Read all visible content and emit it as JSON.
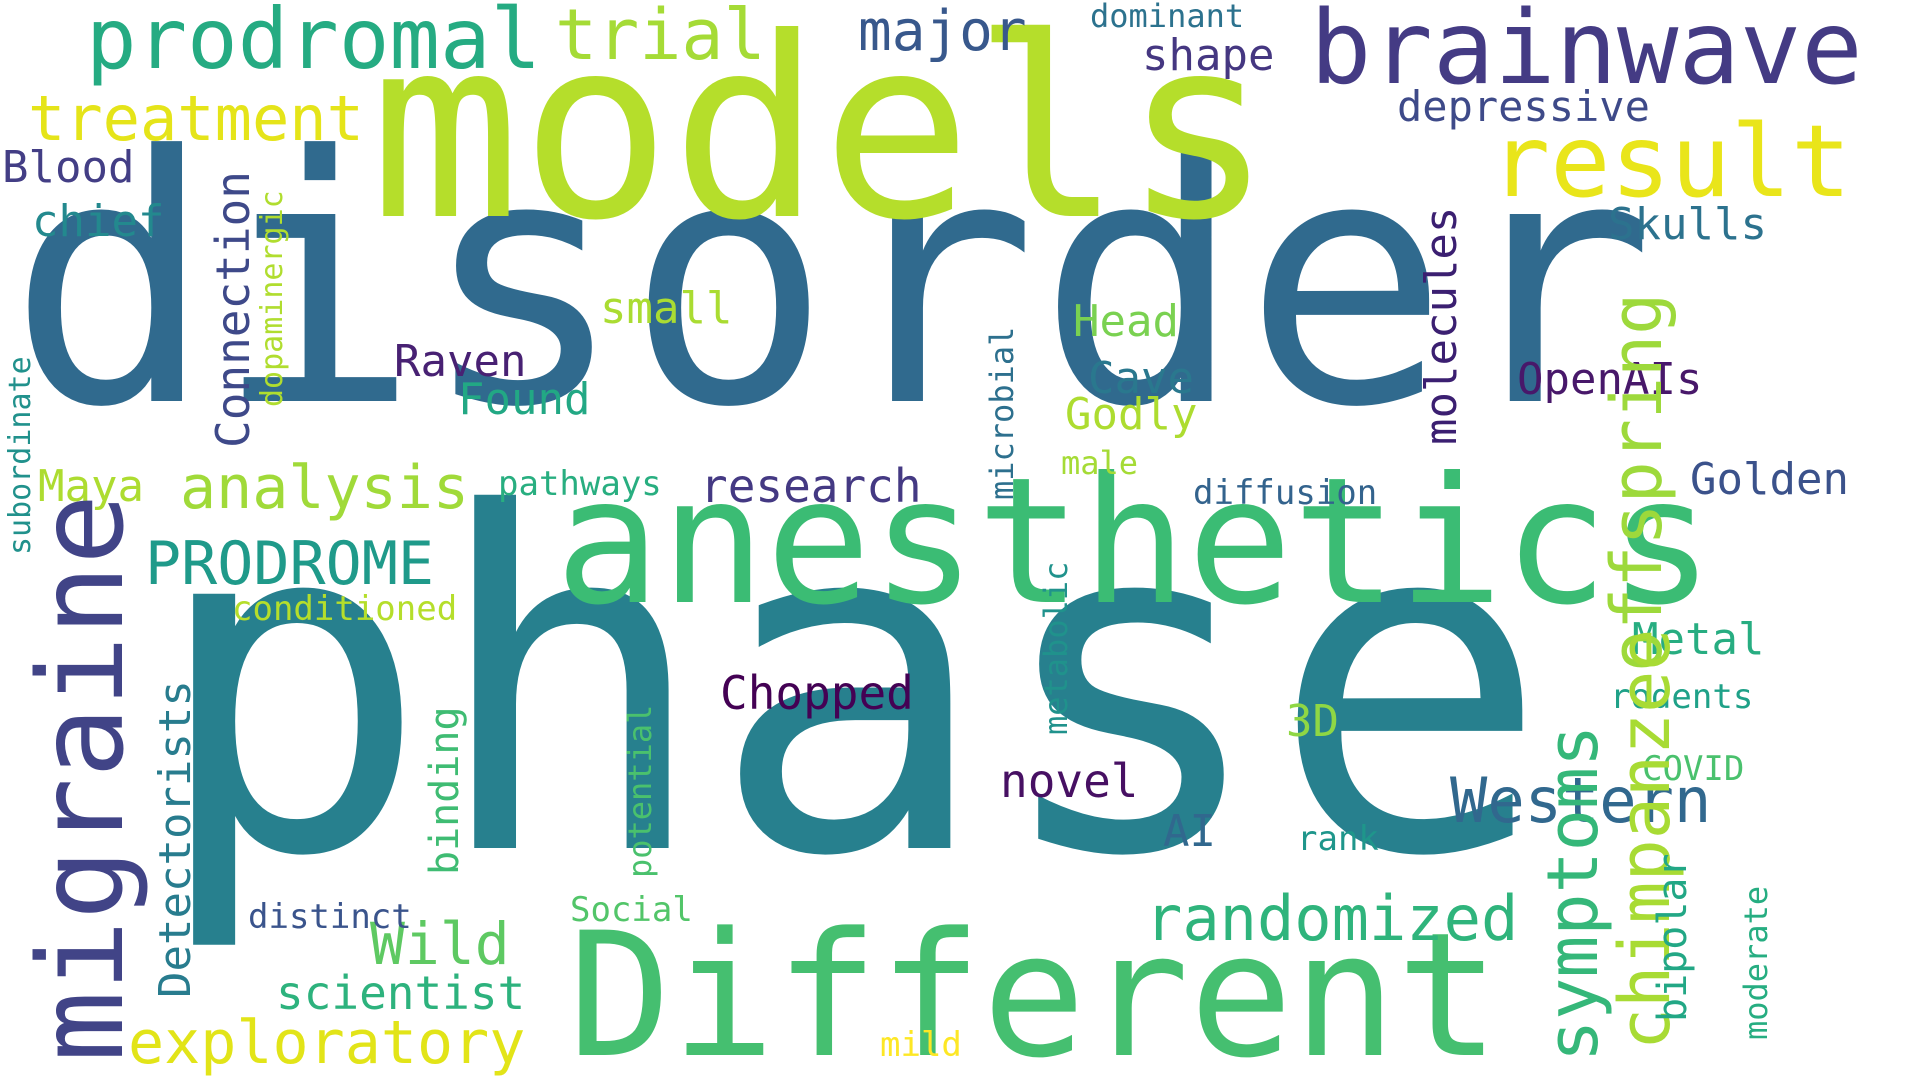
{
  "words": [
    {
      "id": "disorder",
      "text": "disorder",
      "color": "#306a8e"
    },
    {
      "id": "phase",
      "text": "phase",
      "color": "#27808e"
    },
    {
      "id": "models",
      "text": "models",
      "color": "#b5de2b"
    },
    {
      "id": "anesthetics",
      "text": "anesthetics",
      "color": "#3bbc74"
    },
    {
      "id": "different",
      "text": "Different",
      "color": "#45bf70"
    },
    {
      "id": "brainwave",
      "text": "brainwave",
      "color": "#443b84"
    },
    {
      "id": "migraine",
      "text": "migraine",
      "color": "#414487"
    },
    {
      "id": "prodromal",
      "text": "prodromal",
      "color": "#25ab82"
    },
    {
      "id": "result",
      "text": "result",
      "color": "#e9e51a"
    },
    {
      "id": "offspring",
      "text": "offspring",
      "color": "#9dd93b"
    },
    {
      "id": "symptoms",
      "text": "symptoms",
      "color": "#35b779"
    },
    {
      "id": "chimpanzee",
      "text": "chimpanzee",
      "color": "#a8db34"
    },
    {
      "id": "randomized",
      "text": "randomized",
      "color": "#2fb47c"
    },
    {
      "id": "exploratory",
      "text": "exploratory",
      "color": "#e2e418"
    },
    {
      "id": "treatment",
      "text": "treatment",
      "color": "#e5e419"
    },
    {
      "id": "trial",
      "text": "trial",
      "color": "#a5db36"
    },
    {
      "id": "major",
      "text": "major",
      "color": "#38588c"
    },
    {
      "id": "analysis",
      "text": "analysis",
      "color": "#a0da39"
    },
    {
      "id": "prodrome",
      "text": "PRODROME",
      "color": "#1f9a8a"
    },
    {
      "id": "western",
      "text": "Western",
      "color": "#31688e"
    },
    {
      "id": "wild",
      "text": "Wild",
      "color": "#5ec962"
    },
    {
      "id": "connection",
      "text": "Connection",
      "color": "#3e4989"
    },
    {
      "id": "detectorists",
      "text": "Detectorists",
      "color": "#287c8e"
    },
    {
      "id": "molecules",
      "text": "molecules",
      "color": "#3b1f71"
    },
    {
      "id": "research",
      "text": "research",
      "color": "#443983"
    },
    {
      "id": "chopped",
      "text": "Chopped",
      "color": "#440154"
    },
    {
      "id": "scientist",
      "text": "scientist",
      "color": "#2db27d"
    },
    {
      "id": "depressive",
      "text": "depressive",
      "color": "#3e4a89"
    },
    {
      "id": "openais",
      "text": "OpenAIs",
      "color": "#48186a"
    },
    {
      "id": "golden",
      "text": "Golden",
      "color": "#3b528b"
    },
    {
      "id": "metal",
      "text": "Metal",
      "color": "#27ad81"
    },
    {
      "id": "skulls",
      "text": "Skulls",
      "color": "#2c728e"
    },
    {
      "id": "raven",
      "text": "Raven",
      "color": "#482173"
    },
    {
      "id": "found",
      "text": "Found",
      "color": "#22a884"
    },
    {
      "id": "novel",
      "text": "novel",
      "color": "#471063"
    },
    {
      "id": "head",
      "text": "Head",
      "color": "#7ad151"
    },
    {
      "id": "cave",
      "text": "Cave",
      "color": "#2a788e"
    },
    {
      "id": "godly",
      "text": "Godly",
      "color": "#addc30"
    },
    {
      "id": "blood",
      "text": "Blood",
      "color": "#433e85"
    },
    {
      "id": "chief",
      "text": "chief",
      "color": "#23898e"
    },
    {
      "id": "shape",
      "text": "shape",
      "color": "#453781"
    },
    {
      "id": "small",
      "text": "small",
      "color": "#aadc32"
    },
    {
      "id": "maya",
      "text": "Maya",
      "color": "#addc30"
    },
    {
      "id": "binding",
      "text": "binding",
      "color": "#3fbc73"
    },
    {
      "id": "ai",
      "text": "AI",
      "color": "#31688e"
    },
    {
      "id": "3d",
      "text": "3D",
      "color": "#8fd744"
    },
    {
      "id": "dominant",
      "text": "dominant",
      "color": "#2c728e"
    },
    {
      "id": "dopaminergic",
      "text": "dopaminergic",
      "color": "#b0dd2f"
    },
    {
      "id": "subordinate",
      "text": "subordinate",
      "color": "#21918c"
    },
    {
      "id": "pathways",
      "text": "pathways",
      "color": "#28ae80"
    },
    {
      "id": "conditioned",
      "text": "conditioned",
      "color": "#b5de2b"
    },
    {
      "id": "microbial",
      "text": "microbial",
      "color": "#2d708e"
    },
    {
      "id": "male",
      "text": "male",
      "color": "#a5db36"
    },
    {
      "id": "diffusion",
      "text": "diffusion",
      "color": "#33638d"
    },
    {
      "id": "metabolic",
      "text": "metabolic",
      "color": "#20928c"
    },
    {
      "id": "potential",
      "text": "potential",
      "color": "#4ac16d"
    },
    {
      "id": "rodents",
      "text": "rodents",
      "color": "#1fa188"
    },
    {
      "id": "covid",
      "text": "COVID",
      "color": "#4ac16d"
    },
    {
      "id": "rank",
      "text": "rank",
      "color": "#1f968b"
    },
    {
      "id": "distinct",
      "text": "distinct",
      "color": "#3a548c"
    },
    {
      "id": "social",
      "text": "Social",
      "color": "#52c569"
    },
    {
      "id": "bipolar",
      "text": "bipolar",
      "color": "#22a785"
    },
    {
      "id": "moderate",
      "text": "moderate",
      "color": "#26ad81"
    },
    {
      "id": "mild",
      "text": "mild",
      "color": "#fde725"
    }
  ]
}
